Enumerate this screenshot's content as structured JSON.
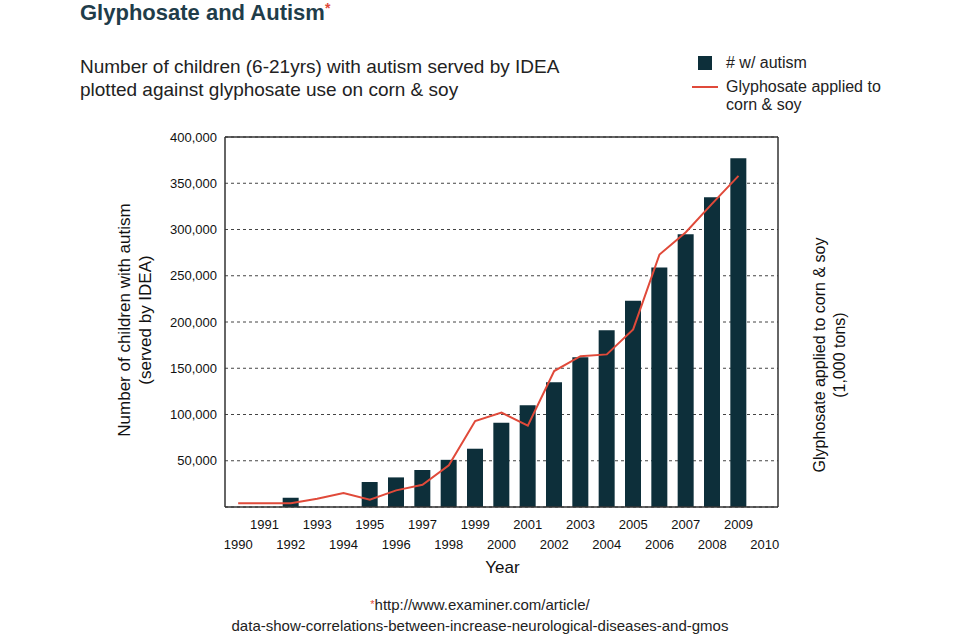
{
  "chart_data": {
    "type": "bar",
    "title": "Glyphosate and Autism",
    "title_mark": "*",
    "subtitle": [
      "Number of children (6-21yrs) with autism served by IDEA",
      "plotted against glyphosate use on corn & soy"
    ],
    "xlabel": "Year",
    "ylabel": [
      "Number of children with autism",
      "(served by IDEA)"
    ],
    "y2label": [
      "Glyphosate applied to corn & soy",
      "(1,000 tons)"
    ],
    "source_mark": "*",
    "source": [
      "http://www.examiner.com/article/",
      "data-show-correlations-between-increase-neurological-diseases-and-gmos"
    ],
    "categories": [
      "1990",
      "1991",
      "1992",
      "1993",
      "1994",
      "1995",
      "1996",
      "1997",
      "1998",
      "1999",
      "2000",
      "2001",
      "2002",
      "2003",
      "2004",
      "2005",
      "2006",
      "2007",
      "2008",
      "2009",
      "2010"
    ],
    "series": [
      {
        "name": "# w/ autism",
        "type": "bar",
        "color": "#0d2f3a",
        "values": [
          null,
          null,
          10000,
          null,
          null,
          27000,
          32000,
          40000,
          51000,
          63000,
          91000,
          110000,
          135000,
          162000,
          191000,
          223000,
          259000,
          295000,
          335000,
          377000,
          null
        ]
      },
      {
        "name": "Glyphosate applied to corn & soy",
        "type": "line",
        "color": "#e04a3a",
        "values": [
          4000,
          4000,
          4000,
          9000,
          15000,
          8000,
          18000,
          24000,
          45000,
          93000,
          102000,
          88000,
          147000,
          163000,
          165000,
          192000,
          273000,
          297000,
          328000,
          358000,
          null
        ]
      }
    ],
    "ylim": [
      0,
      400000
    ],
    "yticks": [
      {
        "value": 50000,
        "label": "50,000"
      },
      {
        "value": 100000,
        "label": "100,000"
      },
      {
        "value": 150000,
        "label": "150,000"
      },
      {
        "value": 200000,
        "label": "200,000"
      },
      {
        "value": 250000,
        "label": "250,000"
      },
      {
        "value": 300000,
        "label": "300,000"
      },
      {
        "value": 350000,
        "label": "350,000"
      },
      {
        "value": 400000,
        "label": "400,000"
      }
    ],
    "grid": true,
    "legend": "top right"
  }
}
